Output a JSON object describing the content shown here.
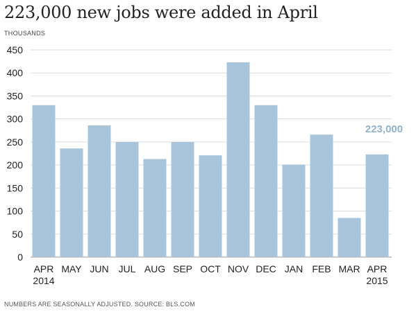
{
  "chart_data": {
    "type": "bar",
    "title": "223,000 new jobs were added in April",
    "ylabel": "THOUSANDS",
    "categories": [
      [
        "APR",
        "2014"
      ],
      [
        "MAY"
      ],
      [
        "JUN"
      ],
      [
        "JUL"
      ],
      [
        "AUG"
      ],
      [
        "SEP"
      ],
      [
        "OCT"
      ],
      [
        "NOV"
      ],
      [
        "DEC"
      ],
      [
        "JAN"
      ],
      [
        "FEB"
      ],
      [
        "MAR"
      ],
      [
        "APR",
        "2015"
      ]
    ],
    "values": [
      330,
      236,
      286,
      250,
      213,
      250,
      221,
      423,
      330,
      201,
      266,
      85,
      223
    ],
    "ylim": [
      0,
      450
    ],
    "yticks": [
      0,
      50,
      100,
      150,
      200,
      250,
      300,
      350,
      400,
      450
    ],
    "grid": true,
    "bar_color": "#a9c5dc",
    "annotation": {
      "text": "223,000",
      "color": "#8fb3d0"
    },
    "source": "NUMBERS ARE SEASONALLY ADJUSTED. SOURCE: BLS.COM"
  }
}
